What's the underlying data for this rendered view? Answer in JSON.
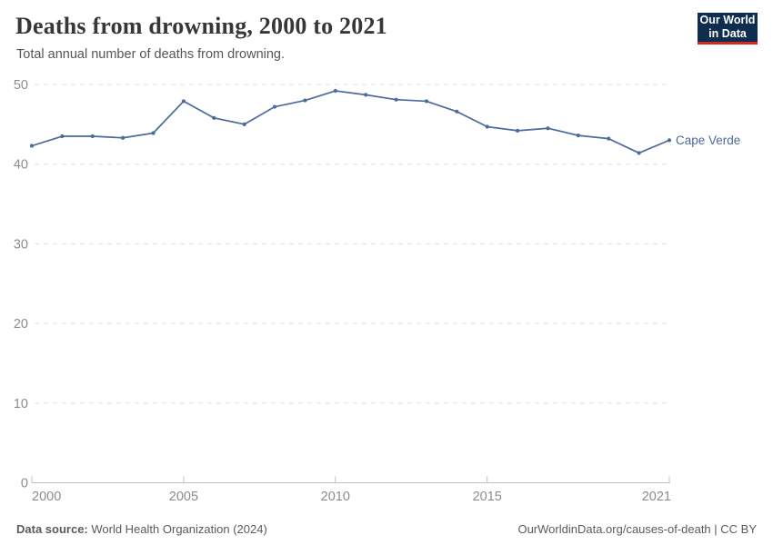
{
  "header": {
    "title": "Deaths from drowning, 2000 to 2021",
    "subtitle": "Total annual number of deaths from drowning.",
    "logo": {
      "line1": "Our World",
      "line2": "in Data",
      "bg": "#0f2d4e",
      "accent": "#d42b20"
    }
  },
  "footer": {
    "source_label": "Data source:",
    "source_value": " World Health Organization (2024)",
    "rights": "OurWorldinData.org/causes-of-death | CC BY"
  },
  "chart_data": {
    "type": "line",
    "title": "Deaths from drowning, 2000 to 2021",
    "subtitle": "Total annual number of deaths from drowning.",
    "xlabel": "",
    "ylabel": "",
    "xlim": [
      2000,
      2021
    ],
    "ylim": [
      0,
      50
    ],
    "x_ticks": [
      2000,
      2005,
      2010,
      2015,
      2021
    ],
    "y_ticks": [
      0,
      10,
      20,
      30,
      40,
      50
    ],
    "grid": "horizontal-dashed",
    "legend_position": "end-of-line-label",
    "series": [
      {
        "name": "Cape Verde",
        "color": "#4C6A9C",
        "x": [
          2000,
          2001,
          2002,
          2003,
          2004,
          2005,
          2006,
          2007,
          2008,
          2009,
          2010,
          2011,
          2012,
          2013,
          2014,
          2015,
          2016,
          2017,
          2018,
          2019,
          2020,
          2021
        ],
        "values": [
          42.3,
          43.5,
          43.5,
          43.3,
          43.9,
          47.9,
          45.8,
          45.0,
          47.2,
          48.0,
          49.2,
          48.7,
          48.1,
          47.9,
          46.6,
          44.7,
          44.2,
          44.5,
          43.6,
          43.2,
          41.4,
          43.0
        ]
      }
    ],
    "style": {
      "grid_color": "#e0e0e0",
      "axis_color": "#c0c0c0",
      "tick_label_color": "#8c8c8c"
    }
  }
}
